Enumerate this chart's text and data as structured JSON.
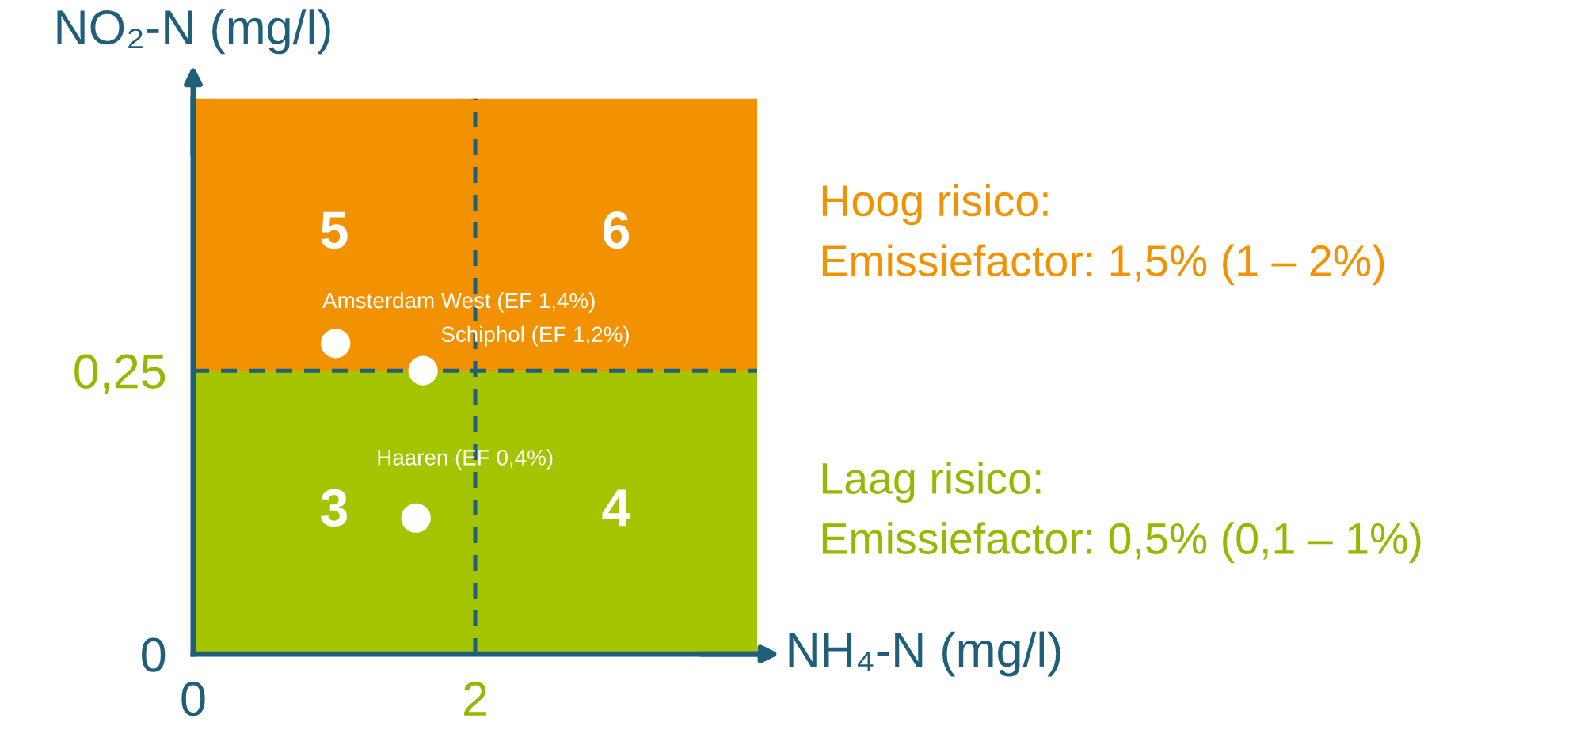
{
  "chart_data": {
    "type": "scatter",
    "xlabel": "NH₄-N (mg/l)",
    "ylabel": "NO₂-N (mg/l)",
    "xlim": [
      0,
      4
    ],
    "ylim": [
      0,
      0.49
    ],
    "xticks": [
      0,
      2
    ],
    "yticks": [
      0,
      {
        "value": 0.25,
        "label": "0,25"
      }
    ],
    "marker": "circle",
    "grid": false,
    "legend": false,
    "series": [
      {
        "name": "Amsterdam West (EF 1,4%)",
        "color": "#ffffff",
        "x": [
          1.01
        ],
        "values": [
          0.274
        ]
      },
      {
        "name": "Schiphol (EF 1,2%)",
        "color": "#ffffff",
        "x": [
          1.63
        ],
        "values": [
          0.25
        ]
      },
      {
        "name": "Haaren (EF 0,4%)",
        "color": "#ffffff",
        "x": [
          1.58
        ],
        "values": [
          0.12
        ]
      }
    ],
    "bands": [
      {
        "axis": "y",
        "from": 0.25,
        "to": 0.49,
        "label": "Hoog risico:\nEmissiefactor: 1,5% (1 – 2%)",
        "color": "#f39200"
      },
      {
        "axis": "y",
        "from": 0,
        "to": 0.25,
        "label": "Laag risico:\nEmissiefactor: 0,5% (0,1 – 1%)",
        "color": "#a5c400"
      }
    ],
    "ref_lines": [
      {
        "axis": "y",
        "value": 0.25,
        "color": "#1f5f7a",
        "line_style": "dashed"
      },
      {
        "axis": "x",
        "value": 2,
        "color": "#1f5f7a",
        "line_style": "dashed"
      }
    ],
    "annotations": [
      "5",
      "6",
      "3",
      "4"
    ]
  }
}
